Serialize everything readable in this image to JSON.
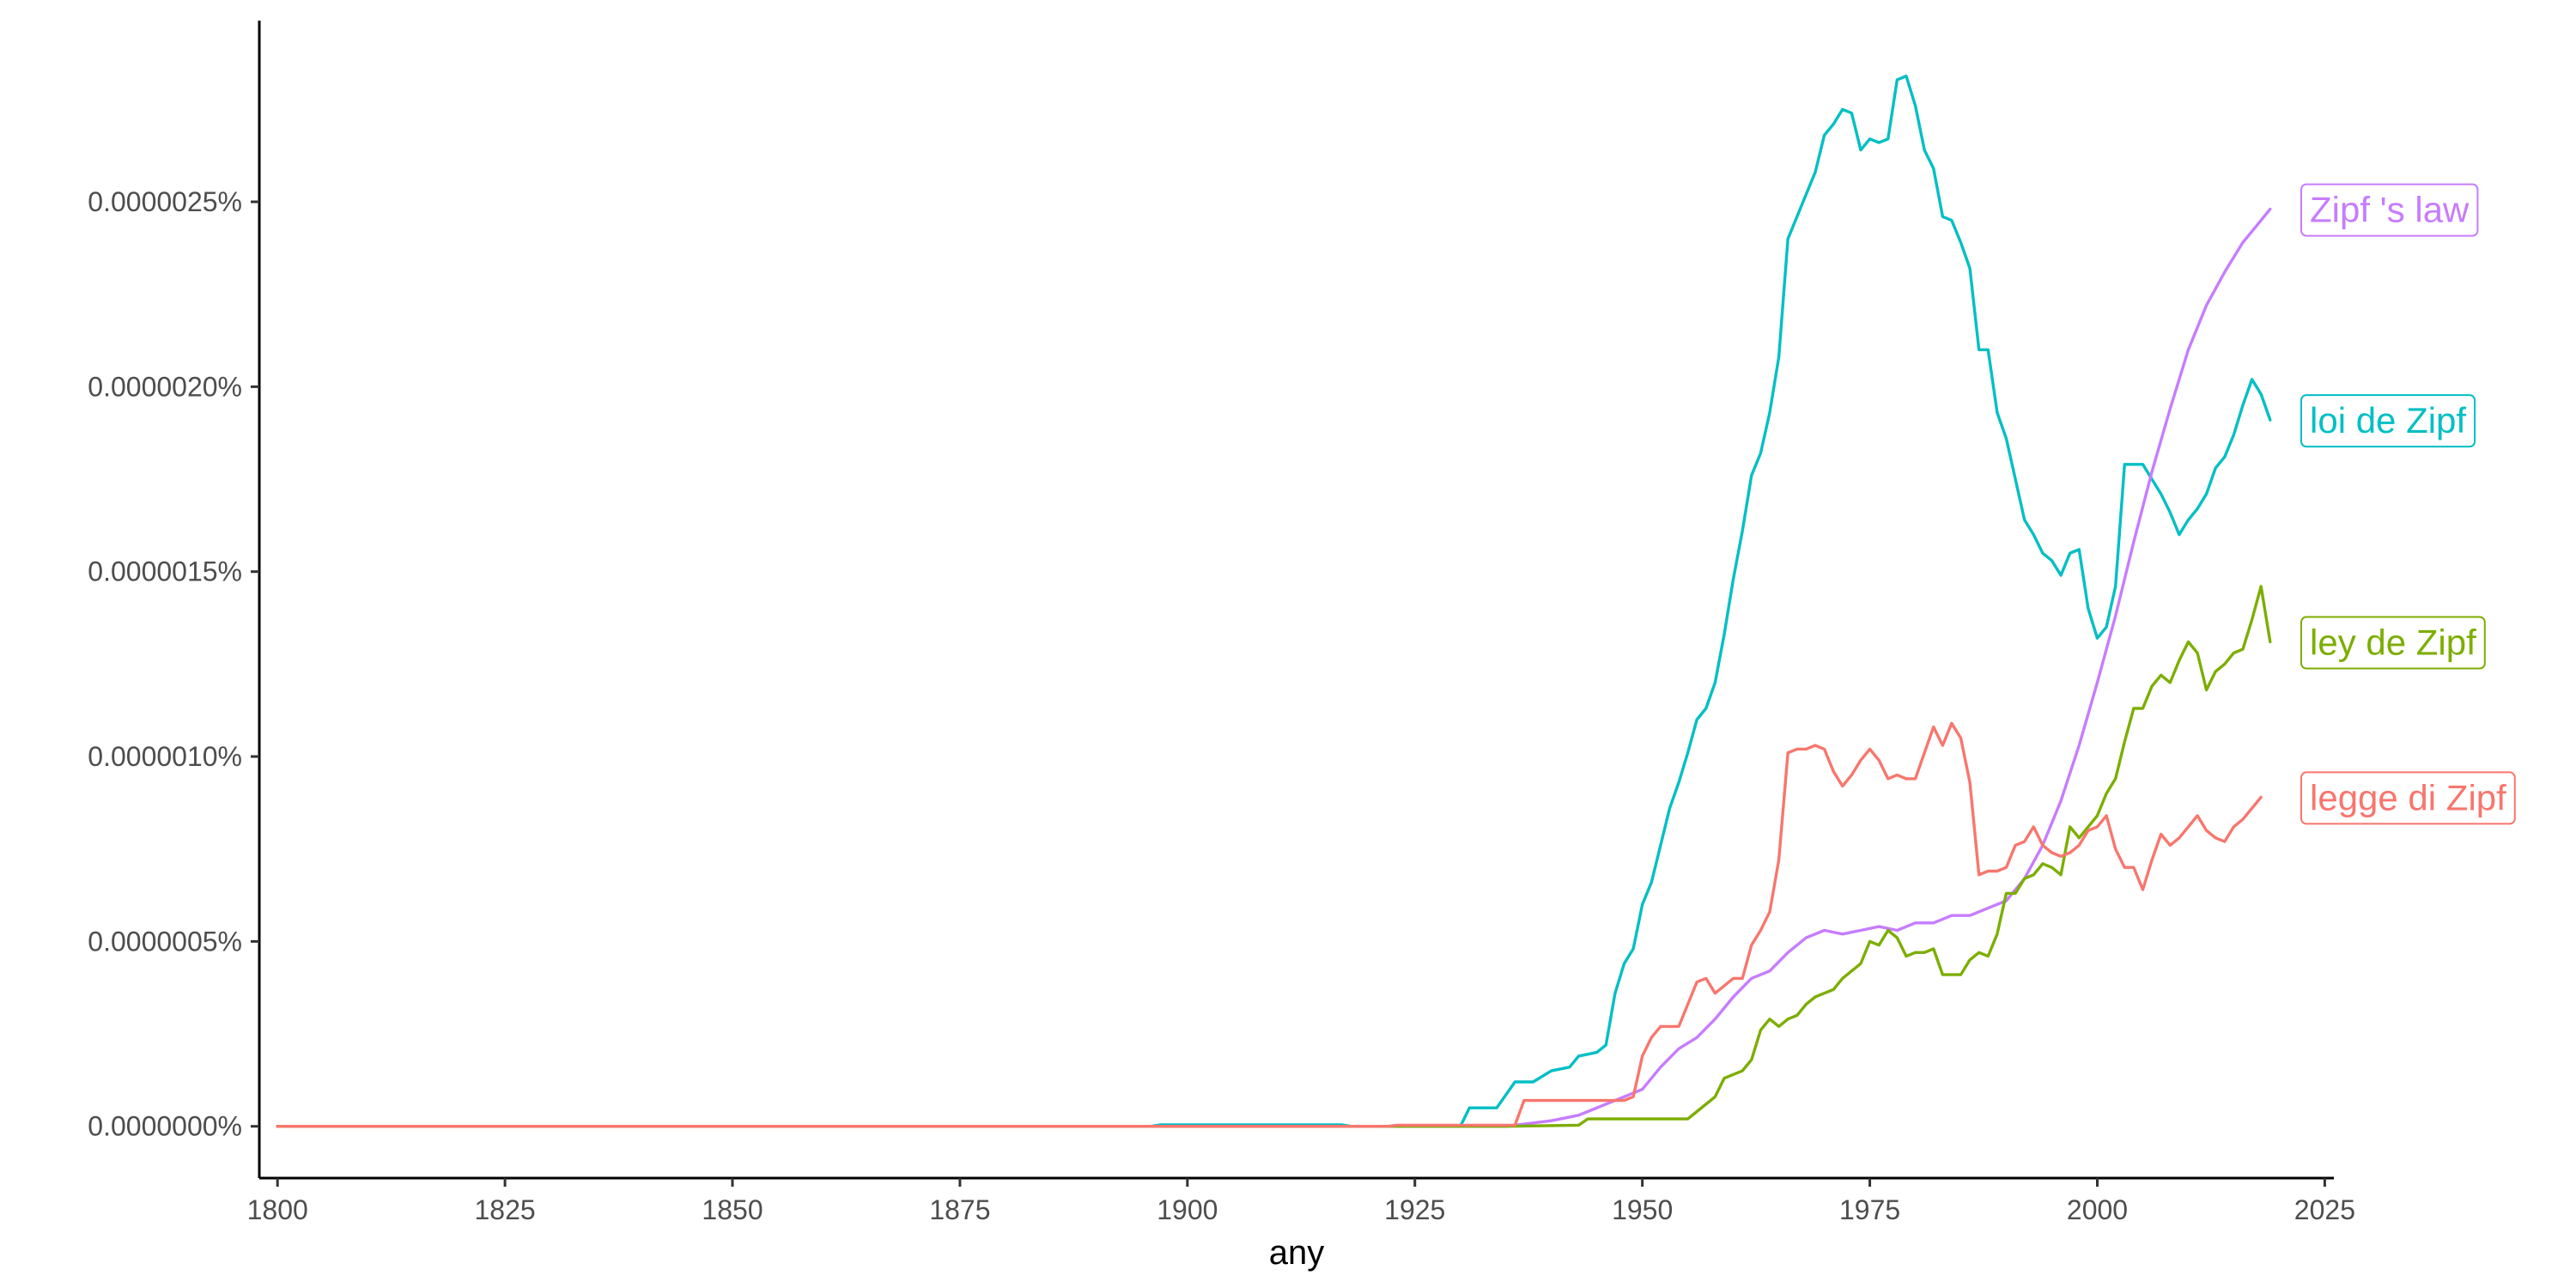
{
  "chart_data": {
    "type": "line",
    "title": "",
    "xlabel": "any",
    "ylabel": "",
    "xlim": [
      1798,
      2026
    ],
    "ylim": [
      -1.4e-07,
      2.99e-06
    ],
    "x_ticks": [
      1800,
      1825,
      1850,
      1875,
      1900,
      1925,
      1950,
      1975,
      2000,
      2025
    ],
    "x_tick_labels": [
      "1800",
      "1825",
      "1850",
      "1875",
      "1900",
      "1925",
      "1950",
      "1975",
      "2000",
      "2025"
    ],
    "y_ticks": [
      0,
      5e-07,
      1e-06,
      1.5e-06,
      2e-06,
      2.5e-06
    ],
    "y_tick_labels": [
      "0.0000000%",
      "0.0000005%",
      "0.0000010%",
      "0.0000015%",
      "0.0000020%",
      "0.0000025%"
    ],
    "grid": false,
    "legend": "direct labels at line ends (right)",
    "series": [
      {
        "name": "loi de Zipf",
        "color": "#00BFC4",
        "points": [
          [
            1800,
            0
          ],
          [
            1896,
            0
          ],
          [
            1897,
            4e-09
          ],
          [
            1917,
            4e-09
          ],
          [
            1918,
            0
          ],
          [
            1930,
            0
          ],
          [
            1931,
            5e-08
          ],
          [
            1934,
            5e-08
          ],
          [
            1936,
            1.2e-07
          ],
          [
            1938,
            1.2e-07
          ],
          [
            1940,
            1.5e-07
          ],
          [
            1942,
            1.6e-07
          ],
          [
            1943,
            1.9e-07
          ],
          [
            1945,
            2e-07
          ],
          [
            1946,
            2.2e-07
          ],
          [
            1947,
            3.6e-07
          ],
          [
            1948,
            4.4e-07
          ],
          [
            1949,
            4.8e-07
          ],
          [
            1950,
            6e-07
          ],
          [
            1951,
            6.6e-07
          ],
          [
            1952,
            7.6e-07
          ],
          [
            1953,
            8.6e-07
          ],
          [
            1954,
            9.3e-07
          ],
          [
            1955,
            1.01e-06
          ],
          [
            1956,
            1.1e-06
          ],
          [
            1957,
            1.13e-06
          ],
          [
            1958,
            1.2e-06
          ],
          [
            1959,
            1.33e-06
          ],
          [
            1960,
            1.48e-06
          ],
          [
            1961,
            1.61e-06
          ],
          [
            1962,
            1.76e-06
          ],
          [
            1963,
            1.82e-06
          ],
          [
            1964,
            1.93e-06
          ],
          [
            1965,
            2.08e-06
          ],
          [
            1966,
            2.4e-06
          ],
          [
            1967,
            2.46e-06
          ],
          [
            1968,
            2.52e-06
          ],
          [
            1969,
            2.58e-06
          ],
          [
            1970,
            2.68e-06
          ],
          [
            1971,
            2.71e-06
          ],
          [
            1972,
            2.75e-06
          ],
          [
            1973,
            2.74e-06
          ],
          [
            1974,
            2.64e-06
          ],
          [
            1975,
            2.67e-06
          ],
          [
            1976,
            2.66e-06
          ],
          [
            1977,
            2.67e-06
          ],
          [
            1978,
            2.83e-06
          ],
          [
            1979,
            2.84e-06
          ],
          [
            1980,
            2.76e-06
          ],
          [
            1981,
            2.64e-06
          ],
          [
            1982,
            2.59e-06
          ],
          [
            1983,
            2.46e-06
          ],
          [
            1984,
            2.45e-06
          ],
          [
            1985,
            2.39e-06
          ],
          [
            1986,
            2.32e-06
          ],
          [
            1987,
            2.1e-06
          ],
          [
            1988,
            2.1e-06
          ],
          [
            1989,
            1.93e-06
          ],
          [
            1990,
            1.86e-06
          ],
          [
            1991,
            1.75e-06
          ],
          [
            1992,
            1.64e-06
          ],
          [
            1993,
            1.6e-06
          ],
          [
            1994,
            1.55e-06
          ],
          [
            1995,
            1.53e-06
          ],
          [
            1996,
            1.49e-06
          ],
          [
            1997,
            1.55e-06
          ],
          [
            1998,
            1.56e-06
          ],
          [
            1999,
            1.4e-06
          ],
          [
            2000,
            1.32e-06
          ],
          [
            2001,
            1.35e-06
          ],
          [
            2002,
            1.46e-06
          ],
          [
            2003,
            1.79e-06
          ],
          [
            2004,
            1.79e-06
          ],
          [
            2005,
            1.79e-06
          ],
          [
            2006,
            1.75e-06
          ],
          [
            2007,
            1.71e-06
          ],
          [
            2008,
            1.66e-06
          ],
          [
            2009,
            1.6e-06
          ],
          [
            2010,
            1.64e-06
          ],
          [
            2011,
            1.67e-06
          ],
          [
            2012,
            1.71e-06
          ],
          [
            2013,
            1.78e-06
          ],
          [
            2014,
            1.81e-06
          ],
          [
            2015,
            1.87e-06
          ],
          [
            2016,
            1.95e-06
          ],
          [
            2017,
            2.02e-06
          ],
          [
            2018,
            1.98e-06
          ],
          [
            2019,
            1.91e-06
          ]
        ]
      },
      {
        "name": "Zipf 's law",
        "color": "#C77CFF",
        "points": [
          [
            1800,
            0
          ],
          [
            1935,
            0
          ],
          [
            1940,
            1.5e-08
          ],
          [
            1943,
            3e-08
          ],
          [
            1945,
            5e-08
          ],
          [
            1948,
            8e-08
          ],
          [
            1950,
            1e-07
          ],
          [
            1952,
            1.6e-07
          ],
          [
            1954,
            2.1e-07
          ],
          [
            1956,
            2.4e-07
          ],
          [
            1958,
            2.9e-07
          ],
          [
            1960,
            3.5e-07
          ],
          [
            1962,
            4e-07
          ],
          [
            1964,
            4.2e-07
          ],
          [
            1966,
            4.7e-07
          ],
          [
            1968,
            5.1e-07
          ],
          [
            1970,
            5.3e-07
          ],
          [
            1972,
            5.2e-07
          ],
          [
            1974,
            5.3e-07
          ],
          [
            1976,
            5.4e-07
          ],
          [
            1978,
            5.3e-07
          ],
          [
            1980,
            5.5e-07
          ],
          [
            1982,
            5.5e-07
          ],
          [
            1984,
            5.7e-07
          ],
          [
            1986,
            5.7e-07
          ],
          [
            1988,
            5.9e-07
          ],
          [
            1990,
            6.1e-07
          ],
          [
            1992,
            6.7e-07
          ],
          [
            1994,
            7.6e-07
          ],
          [
            1996,
            8.8e-07
          ],
          [
            1998,
            1.03e-06
          ],
          [
            2000,
            1.2e-06
          ],
          [
            2002,
            1.38e-06
          ],
          [
            2004,
            1.58e-06
          ],
          [
            2006,
            1.77e-06
          ],
          [
            2008,
            1.94e-06
          ],
          [
            2010,
            2.1e-06
          ],
          [
            2012,
            2.22e-06
          ],
          [
            2014,
            2.31e-06
          ],
          [
            2016,
            2.39e-06
          ],
          [
            2018,
            2.45e-06
          ],
          [
            2019,
            2.48e-06
          ]
        ]
      },
      {
        "name": "ley de Zipf",
        "color": "#7CAE00",
        "points": [
          [
            1800,
            0
          ],
          [
            1935,
            0
          ],
          [
            1943,
            3e-09
          ],
          [
            1944,
            2e-08
          ],
          [
            1955,
            2e-08
          ],
          [
            1956,
            4e-08
          ],
          [
            1958,
            8e-08
          ],
          [
            1959,
            1.3e-07
          ],
          [
            1961,
            1.5e-07
          ],
          [
            1962,
            1.8e-07
          ],
          [
            1963,
            2.6e-07
          ],
          [
            1964,
            2.9e-07
          ],
          [
            1965,
            2.7e-07
          ],
          [
            1966,
            2.9e-07
          ],
          [
            1967,
            3e-07
          ],
          [
            1968,
            3.3e-07
          ],
          [
            1969,
            3.5e-07
          ],
          [
            1970,
            3.6e-07
          ],
          [
            1971,
            3.7e-07
          ],
          [
            1972,
            4e-07
          ],
          [
            1973,
            4.2e-07
          ],
          [
            1974,
            4.4e-07
          ],
          [
            1975,
            5e-07
          ],
          [
            1976,
            4.9e-07
          ],
          [
            1977,
            5.3e-07
          ],
          [
            1978,
            5.1e-07
          ],
          [
            1979,
            4.6e-07
          ],
          [
            1980,
            4.7e-07
          ],
          [
            1981,
            4.7e-07
          ],
          [
            1982,
            4.8e-07
          ],
          [
            1983,
            4.1e-07
          ],
          [
            1984,
            4.1e-07
          ],
          [
            1985,
            4.1e-07
          ],
          [
            1986,
            4.5e-07
          ],
          [
            1987,
            4.7e-07
          ],
          [
            1988,
            4.6e-07
          ],
          [
            1989,
            5.2e-07
          ],
          [
            1990,
            6.3e-07
          ],
          [
            1991,
            6.3e-07
          ],
          [
            1992,
            6.7e-07
          ],
          [
            1993,
            6.8e-07
          ],
          [
            1994,
            7.1e-07
          ],
          [
            1995,
            7e-07
          ],
          [
            1996,
            6.8e-07
          ],
          [
            1997,
            8.1e-07
          ],
          [
            1998,
            7.8e-07
          ],
          [
            1999,
            8.1e-07
          ],
          [
            2000,
            8.4e-07
          ],
          [
            2001,
            9e-07
          ],
          [
            2002,
            9.4e-07
          ],
          [
            2003,
            1.04e-06
          ],
          [
            2004,
            1.13e-06
          ],
          [
            2005,
            1.13e-06
          ],
          [
            2006,
            1.19e-06
          ],
          [
            2007,
            1.22e-06
          ],
          [
            2008,
            1.2e-06
          ],
          [
            2009,
            1.26e-06
          ],
          [
            2010,
            1.31e-06
          ],
          [
            2011,
            1.28e-06
          ],
          [
            2012,
            1.18e-06
          ],
          [
            2013,
            1.23e-06
          ],
          [
            2014,
            1.25e-06
          ],
          [
            2015,
            1.28e-06
          ],
          [
            2016,
            1.29e-06
          ],
          [
            2017,
            1.37e-06
          ],
          [
            2018,
            1.46e-06
          ],
          [
            2019,
            1.31e-06
          ]
        ]
      },
      {
        "name": "legge di Zipf",
        "color": "#F8766D",
        "points": [
          [
            1800,
            0
          ],
          [
            1922,
            0
          ],
          [
            1923,
            3e-09
          ],
          [
            1936,
            3e-09
          ],
          [
            1937,
            7e-08
          ],
          [
            1948,
            7e-08
          ],
          [
            1949,
            8e-08
          ],
          [
            1950,
            1.9e-07
          ],
          [
            1951,
            2.4e-07
          ],
          [
            1952,
            2.7e-07
          ],
          [
            1953,
            2.7e-07
          ],
          [
            1954,
            2.7e-07
          ],
          [
            1955,
            3.3e-07
          ],
          [
            1956,
            3.9e-07
          ],
          [
            1957,
            4e-07
          ],
          [
            1958,
            3.6e-07
          ],
          [
            1959,
            3.8e-07
          ],
          [
            1960,
            4e-07
          ],
          [
            1961,
            4e-07
          ],
          [
            1962,
            4.9e-07
          ],
          [
            1963,
            5.3e-07
          ],
          [
            1964,
            5.8e-07
          ],
          [
            1965,
            7.2e-07
          ],
          [
            1966,
            1.01e-06
          ],
          [
            1967,
            1.02e-06
          ],
          [
            1968,
            1.02e-06
          ],
          [
            1969,
            1.03e-06
          ],
          [
            1970,
            1.02e-06
          ],
          [
            1971,
            9.6e-07
          ],
          [
            1972,
            9.2e-07
          ],
          [
            1973,
            9.5e-07
          ],
          [
            1974,
            9.9e-07
          ],
          [
            1975,
            1.02e-06
          ],
          [
            1976,
            9.9e-07
          ],
          [
            1977,
            9.4e-07
          ],
          [
            1978,
            9.5e-07
          ],
          [
            1979,
            9.4e-07
          ],
          [
            1980,
            9.4e-07
          ],
          [
            1981,
            1.01e-06
          ],
          [
            1982,
            1.08e-06
          ],
          [
            1983,
            1.03e-06
          ],
          [
            1984,
            1.09e-06
          ],
          [
            1985,
            1.05e-06
          ],
          [
            1986,
            9.3e-07
          ],
          [
            1987,
            6.8e-07
          ],
          [
            1988,
            6.9e-07
          ],
          [
            1989,
            6.9e-07
          ],
          [
            1990,
            7e-07
          ],
          [
            1991,
            7.6e-07
          ],
          [
            1992,
            7.7e-07
          ],
          [
            1993,
            8.1e-07
          ],
          [
            1994,
            7.6e-07
          ],
          [
            1995,
            7.4e-07
          ],
          [
            1996,
            7.3e-07
          ],
          [
            1997,
            7.4e-07
          ],
          [
            1998,
            7.6e-07
          ],
          [
            1999,
            8e-07
          ],
          [
            2000,
            8.1e-07
          ],
          [
            2001,
            8.4e-07
          ],
          [
            2002,
            7.5e-07
          ],
          [
            2003,
            7e-07
          ],
          [
            2004,
            7e-07
          ],
          [
            2005,
            6.4e-07
          ],
          [
            2006,
            7.2e-07
          ],
          [
            2007,
            7.9e-07
          ],
          [
            2008,
            7.6e-07
          ],
          [
            2009,
            7.8e-07
          ],
          [
            2010,
            8.1e-07
          ],
          [
            2011,
            8.4e-07
          ],
          [
            2012,
            8e-07
          ],
          [
            2013,
            7.8e-07
          ],
          [
            2014,
            7.7e-07
          ],
          [
            2015,
            8.1e-07
          ],
          [
            2016,
            8.3e-07
          ],
          [
            2017,
            8.6e-07
          ],
          [
            2018,
            8.9e-07
          ]
        ]
      }
    ]
  }
}
